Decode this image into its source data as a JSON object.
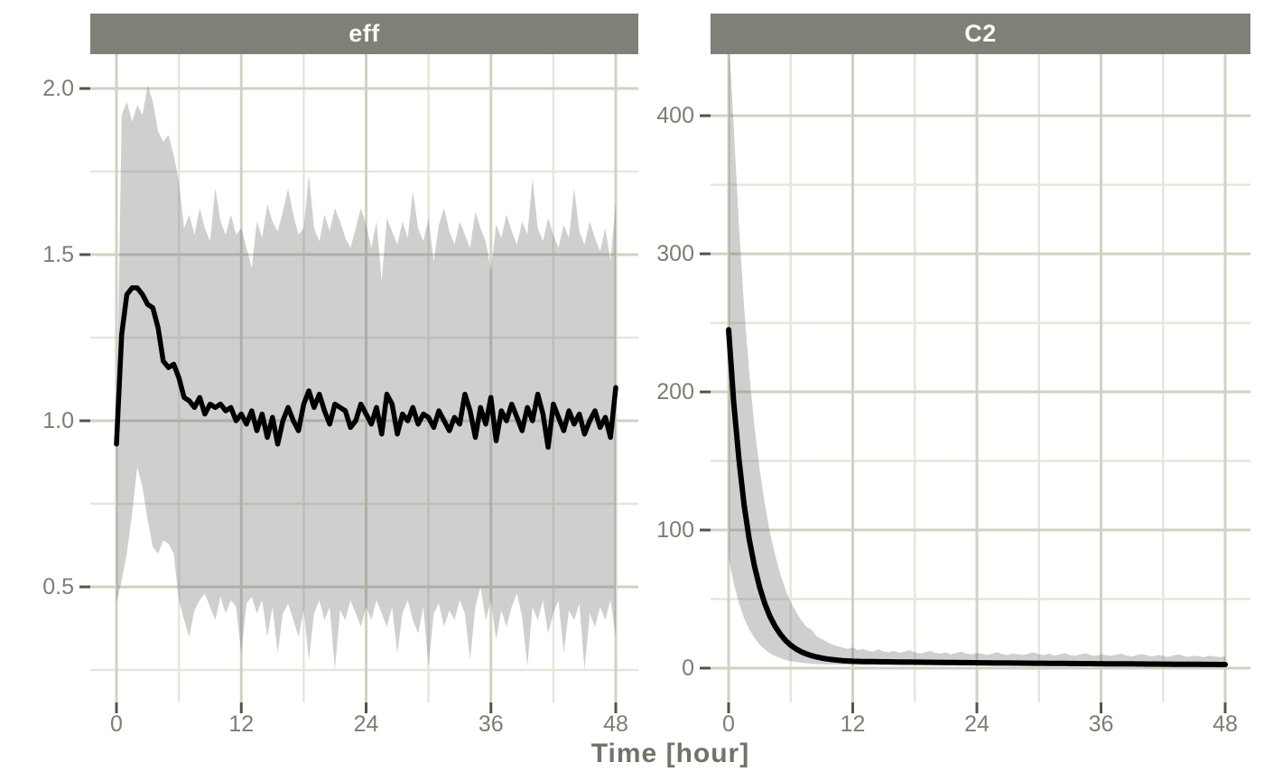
{
  "figure": {
    "x_axis_title": "Time [hour]"
  },
  "style": {
    "strip_fill": "#807f78",
    "strip_text": "#fbfbf2",
    "panel_bg": "#ffffff",
    "grid_major": "#d1d2c3",
    "grid_minor": "#e6e7da",
    "ribbon_fill": "rgba(96,96,96,0.30)",
    "median_line": "#000000",
    "tick_mark": "#55544b",
    "tick_label": "#7e7d73",
    "axis_title": "#73726a"
  },
  "chart_data": [
    {
      "type": "area",
      "subtype": "median-line-with-prediction-ribbon",
      "facet_label": "eff",
      "xlabel": "Time [hour]",
      "x_ticks": {
        "values": [
          0,
          12,
          24,
          36,
          48
        ],
        "labels": [
          "0",
          "12",
          "24",
          "36",
          "48"
        ]
      },
      "x_minor": [
        6,
        18,
        30,
        42
      ],
      "y_ticks": {
        "values": [
          0.5,
          1.0,
          1.5,
          2.0
        ],
        "labels": [
          "0.5",
          "1.0",
          "1.5",
          "2.0"
        ]
      },
      "y_minor": [
        0.25,
        0.75,
        1.25,
        1.75
      ],
      "xlim": [
        -2.5,
        50.2
      ],
      "ylim": [
        0.15,
        2.1
      ],
      "grid": true,
      "legend": "none",
      "time": {
        "start": 0,
        "step": 0.5,
        "end": 48
      },
      "series": {
        "median": [
          0.93,
          1.26,
          1.38,
          1.4,
          1.4,
          1.38,
          1.35,
          1.34,
          1.28,
          1.18,
          1.16,
          1.17,
          1.13,
          1.07,
          1.06,
          1.04,
          1.07,
          1.02,
          1.05,
          1.04,
          1.05,
          1.03,
          1.04,
          1.0,
          1.02,
          0.99,
          1.03,
          0.97,
          1.02,
          0.95,
          1.01,
          0.93,
          1.0,
          1.04,
          1.0,
          0.97,
          1.05,
          1.09,
          1.04,
          1.08,
          1.03,
          0.99,
          1.05,
          1.04,
          1.03,
          0.98,
          1.0,
          1.05,
          1.02,
          0.99,
          1.04,
          0.96,
          1.08,
          1.05,
          0.96,
          1.02,
          1.0,
          1.04,
          0.99,
          1.02,
          1.01,
          0.98,
          1.03,
          1.0,
          0.97,
          1.01,
          0.99,
          1.08,
          1.03,
          0.95,
          1.04,
          0.99,
          1.07,
          0.94,
          1.03,
          1.0,
          1.05,
          1.01,
          0.97,
          1.04,
          1.0,
          1.08,
          1.02,
          0.92,
          1.05,
          1.01,
          0.97,
          1.03,
          0.99,
          1.02,
          0.96,
          1.0,
          1.03,
          0.98,
          1.01,
          0.95,
          1.1
        ],
        "hi": [
          0.95,
          1.92,
          1.96,
          1.9,
          1.95,
          1.92,
          2.01,
          1.96,
          1.87,
          1.84,
          1.86,
          1.8,
          1.72,
          1.58,
          1.62,
          1.56,
          1.64,
          1.58,
          1.54,
          1.7,
          1.6,
          1.56,
          1.62,
          1.56,
          1.58,
          1.52,
          1.46,
          1.6,
          1.55,
          1.65,
          1.6,
          1.57,
          1.63,
          1.7,
          1.62,
          1.56,
          1.58,
          1.74,
          1.58,
          1.54,
          1.62,
          1.57,
          1.64,
          1.6,
          1.55,
          1.52,
          1.58,
          1.64,
          1.59,
          1.52,
          1.6,
          1.42,
          1.61,
          1.57,
          1.53,
          1.6,
          1.55,
          1.69,
          1.58,
          1.54,
          1.61,
          1.48,
          1.59,
          1.64,
          1.57,
          1.53,
          1.6,
          1.56,
          1.52,
          1.63,
          1.58,
          1.54,
          1.45,
          1.59,
          1.55,
          1.62,
          1.57,
          1.53,
          1.6,
          1.56,
          1.73,
          1.58,
          1.54,
          1.61,
          1.56,
          1.52,
          1.59,
          1.55,
          1.7,
          1.57,
          1.53,
          1.6,
          1.55,
          1.51,
          1.58,
          1.48,
          1.66
        ],
        "lo": [
          0.45,
          0.52,
          0.6,
          0.72,
          0.86,
          0.8,
          0.7,
          0.62,
          0.6,
          0.64,
          0.63,
          0.6,
          0.46,
          0.4,
          0.35,
          0.43,
          0.46,
          0.48,
          0.44,
          0.4,
          0.47,
          0.42,
          0.46,
          0.44,
          0.3,
          0.45,
          0.47,
          0.42,
          0.46,
          0.35,
          0.44,
          0.3,
          0.42,
          0.45,
          0.4,
          0.35,
          0.43,
          0.28,
          0.42,
          0.46,
          0.4,
          0.44,
          0.25,
          0.43,
          0.4,
          0.46,
          0.42,
          0.38,
          0.44,
          0.4,
          0.46,
          0.42,
          0.38,
          0.44,
          0.3,
          0.42,
          0.46,
          0.4,
          0.36,
          0.44,
          0.26,
          0.42,
          0.45,
          0.38,
          0.43,
          0.4,
          0.46,
          0.42,
          0.28,
          0.44,
          0.5,
          0.4,
          0.46,
          0.34,
          0.43,
          0.38,
          0.44,
          0.48,
          0.41,
          0.26,
          0.44,
          0.4,
          0.46,
          0.36,
          0.42,
          0.46,
          0.3,
          0.43,
          0.4,
          0.45,
          0.25,
          0.42,
          0.38,
          0.44,
          0.4,
          0.46,
          0.35
        ]
      }
    },
    {
      "type": "area",
      "subtype": "median-line-with-prediction-ribbon",
      "facet_label": "C2",
      "xlabel": "Time [hour]",
      "x_ticks": {
        "values": [
          0,
          12,
          24,
          36,
          48
        ],
        "labels": [
          "0",
          "12",
          "24",
          "36",
          "48"
        ]
      },
      "x_minor": [
        6,
        18,
        30,
        42
      ],
      "y_ticks": {
        "values": [
          0,
          100,
          200,
          300,
          400
        ],
        "labels": [
          "0",
          "100",
          "200",
          "300",
          "400"
        ]
      },
      "y_minor": [
        50,
        150,
        250,
        350
      ],
      "xlim": [
        -1.8,
        50.4
      ],
      "ylim": [
        -25,
        444
      ],
      "grid": true,
      "legend": "none",
      "time": {
        "start": 0,
        "step": 0.5,
        "end": 48
      },
      "series": {
        "median": [
          245,
          192,
          151,
          118,
          93,
          74,
          58.5,
          46.7,
          37.4,
          30.2,
          24.6,
          20.1,
          16.7,
          14,
          11.9,
          10.3,
          9.1,
          8.1,
          7.3,
          6.7,
          6.2,
          5.8,
          5.4,
          5.2,
          5.0,
          4.9,
          4.8,
          4.75,
          4.7,
          4.65,
          4.6,
          4.55,
          4.5,
          4.46,
          4.42,
          4.38,
          4.34,
          4.3,
          4.27,
          4.23,
          4.2,
          4.16,
          4.12,
          4.09,
          4.05,
          4.02,
          3.98,
          3.95,
          3.91,
          3.88,
          3.85,
          3.81,
          3.78,
          3.75,
          3.72,
          3.68,
          3.65,
          3.62,
          3.59,
          3.56,
          3.53,
          3.5,
          3.47,
          3.44,
          3.41,
          3.38,
          3.35,
          3.33,
          3.3,
          3.27,
          3.24,
          3.22,
          3.19,
          3.16,
          3.14,
          3.11,
          3.09,
          3.06,
          3.04,
          3.01,
          2.99,
          2.96,
          2.94,
          2.91,
          2.89,
          2.87,
          2.84,
          2.82,
          2.8,
          2.78,
          2.75,
          2.73,
          2.71,
          2.69,
          2.67,
          2.64,
          2.62
        ],
        "hi": [
          460,
          392,
          320,
          261,
          214,
          175,
          144,
          119,
          98,
          82,
          68,
          57,
          48,
          41,
          35,
          30,
          28,
          23,
          21,
          19,
          17,
          16,
          15,
          14,
          15,
          13,
          14,
          12.5,
          12,
          13.5,
          12,
          11.5,
          12.5,
          11,
          12,
          13,
          11.5,
          10.5,
          11.5,
          12.5,
          11,
          10.5,
          11.5,
          10,
          11,
          12,
          10.5,
          10,
          11,
          10.5,
          9.5,
          10.5,
          11.5,
          10,
          9.5,
          10.5,
          10,
          9.5,
          10.5,
          11.5,
          10,
          9.5,
          10.5,
          9,
          10,
          11,
          9.5,
          9,
          10,
          10.8,
          9.5,
          9,
          10,
          9.5,
          8.8,
          9.8,
          10.5,
          9,
          8.5,
          9.5,
          10.2,
          9,
          8.5,
          9.5,
          8.8,
          8.2,
          9.2,
          10,
          8.8,
          8.2,
          9,
          8.5,
          8,
          9,
          8.5,
          8,
          8.5
        ],
        "lo": [
          80,
          61,
          47,
          36,
          28,
          22,
          17,
          13.6,
          10.8,
          8.8,
          7.2,
          6,
          5.1,
          4.4,
          3.9,
          3.5,
          3.2,
          3,
          2.8,
          2.7,
          2.6,
          2.55,
          2.5,
          2.45,
          2.4,
          2.38,
          2.35,
          2.33,
          2.3,
          2.28,
          2.25,
          2.23,
          2.2,
          2.18,
          2.15,
          2.13,
          2.1,
          2.08,
          2.05,
          2.03,
          2.0,
          1.99,
          1.98,
          1.96,
          1.95,
          1.93,
          1.92,
          1.91,
          1.9,
          1.88,
          1.87,
          1.86,
          1.85,
          1.83,
          1.82,
          1.81,
          1.8,
          1.79,
          1.78,
          1.76,
          1.75,
          1.73,
          1.72,
          1.71,
          1.7,
          1.69,
          1.68,
          1.67,
          1.66,
          1.65,
          1.64,
          1.63,
          1.62,
          1.61,
          1.6,
          1.59,
          1.58,
          1.57,
          1.56,
          1.55,
          1.54,
          1.53,
          1.52,
          1.51,
          1.5,
          1.49,
          1.48,
          1.47,
          1.46,
          1.45,
          1.44,
          1.43,
          1.42,
          1.41,
          1.4,
          1.39,
          1.38
        ]
      }
    }
  ]
}
